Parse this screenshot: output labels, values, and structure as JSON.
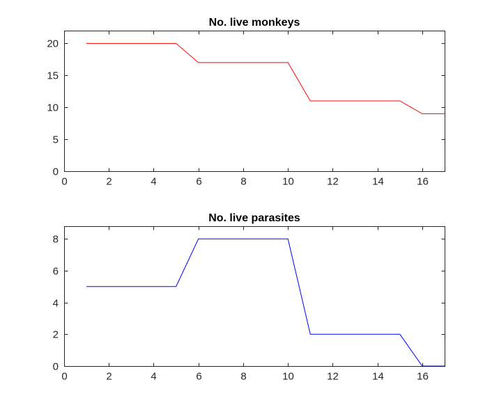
{
  "chart_data": [
    {
      "type": "line",
      "title": "No. live monkeys",
      "xlabel": "",
      "ylabel": "",
      "xlim": [
        0,
        17
      ],
      "ylim": [
        0,
        22
      ],
      "xticks": [
        0,
        2,
        4,
        6,
        8,
        10,
        12,
        14,
        16
      ],
      "yticks": [
        0,
        5,
        10,
        15,
        20
      ],
      "grid": false,
      "series": [
        {
          "color": "#ff0000",
          "x": [
            1,
            2,
            3,
            4,
            5,
            6,
            7,
            8,
            9,
            10,
            11,
            12,
            13,
            14,
            15,
            16,
            17
          ],
          "y": [
            20,
            20,
            20,
            20,
            20,
            17,
            17,
            17,
            17,
            17,
            11,
            11,
            11,
            11,
            11,
            9,
            9
          ]
        }
      ]
    },
    {
      "type": "line",
      "title": "No. live parasites",
      "xlabel": "",
      "ylabel": "",
      "xlim": [
        0,
        17
      ],
      "ylim": [
        0,
        8.8
      ],
      "xticks": [
        0,
        2,
        4,
        6,
        8,
        10,
        12,
        14,
        16
      ],
      "yticks": [
        0,
        2,
        4,
        6,
        8
      ],
      "grid": false,
      "series": [
        {
          "color": "#0000ff",
          "x": [
            1,
            2,
            3,
            4,
            5,
            6,
            7,
            8,
            9,
            10,
            11,
            12,
            13,
            14,
            15,
            16,
            17
          ],
          "y": [
            5,
            5,
            5,
            5,
            5,
            8,
            8,
            8,
            8,
            8,
            2,
            2,
            2,
            2,
            2,
            0,
            0
          ]
        }
      ]
    }
  ]
}
